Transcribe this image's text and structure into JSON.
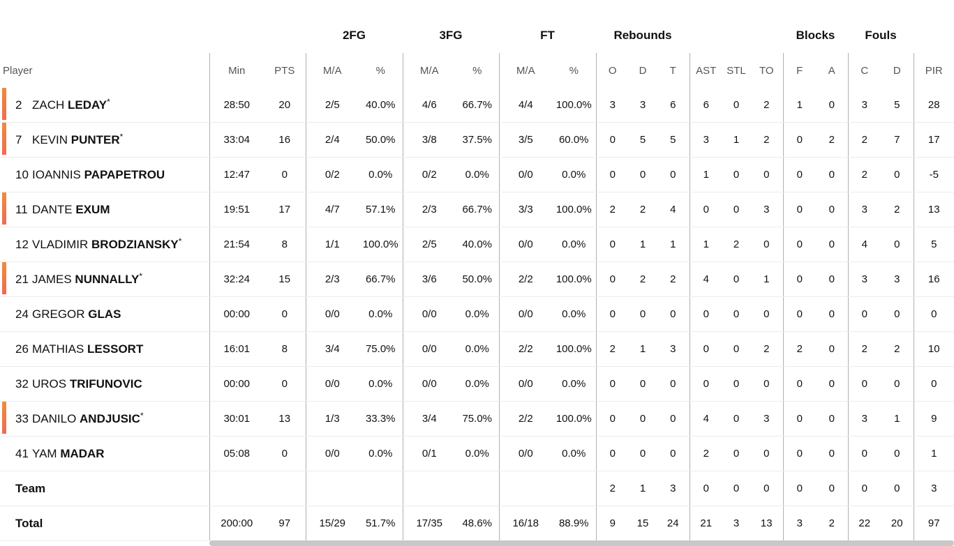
{
  "groups": {
    "fg2": "2FG",
    "fg3": "3FG",
    "ft": "FT",
    "rebounds": "Rebounds",
    "blocks": "Blocks",
    "fouls": "Fouls"
  },
  "columns": {
    "player": "Player",
    "min": "Min",
    "pts": "PTS",
    "fg2_ma": "M/A",
    "fg2_pct": "%",
    "fg3_ma": "M/A",
    "fg3_pct": "%",
    "ft_ma": "M/A",
    "ft_pct": "%",
    "reb_o": "O",
    "reb_d": "D",
    "reb_t": "T",
    "ast": "AST",
    "stl": "STL",
    "to": "TO",
    "blk_f": "F",
    "blk_a": "A",
    "foul_c": "C",
    "foul_d": "D",
    "pir": "PIR"
  },
  "starter_color": "#f36a50",
  "rows": [
    {
      "num": "2",
      "first": "ZACH",
      "last": "LEDAY",
      "star": "*",
      "starter": true,
      "min": "28:50",
      "pts": "20",
      "fg2_ma": "2/5",
      "fg2_pct": "40.0%",
      "fg3_ma": "4/6",
      "fg3_pct": "66.7%",
      "ft_ma": "4/4",
      "ft_pct": "100.0%",
      "reb_o": "3",
      "reb_d": "3",
      "reb_t": "6",
      "ast": "6",
      "stl": "0",
      "to": "2",
      "blk_f": "1",
      "blk_a": "0",
      "foul_c": "3",
      "foul_d": "5",
      "pir": "28"
    },
    {
      "num": "7",
      "first": "KEVIN",
      "last": "PUNTER",
      "star": "*",
      "starter": true,
      "min": "33:04",
      "pts": "16",
      "fg2_ma": "2/4",
      "fg2_pct": "50.0%",
      "fg3_ma": "3/8",
      "fg3_pct": "37.5%",
      "ft_ma": "3/5",
      "ft_pct": "60.0%",
      "reb_o": "0",
      "reb_d": "5",
      "reb_t": "5",
      "ast": "3",
      "stl": "1",
      "to": "2",
      "blk_f": "0",
      "blk_a": "2",
      "foul_c": "2",
      "foul_d": "7",
      "pir": "17"
    },
    {
      "num": "10",
      "first": "IOANNIS",
      "last": "PAPAPETROU",
      "star": "",
      "starter": false,
      "min": "12:47",
      "pts": "0",
      "fg2_ma": "0/2",
      "fg2_pct": "0.0%",
      "fg3_ma": "0/2",
      "fg3_pct": "0.0%",
      "ft_ma": "0/0",
      "ft_pct": "0.0%",
      "reb_o": "0",
      "reb_d": "0",
      "reb_t": "0",
      "ast": "1",
      "stl": "0",
      "to": "0",
      "blk_f": "0",
      "blk_a": "0",
      "foul_c": "2",
      "foul_d": "0",
      "pir": "-5"
    },
    {
      "num": "11",
      "first": "DANTE",
      "last": "EXUM",
      "star": "",
      "starter": true,
      "min": "19:51",
      "pts": "17",
      "fg2_ma": "4/7",
      "fg2_pct": "57.1%",
      "fg3_ma": "2/3",
      "fg3_pct": "66.7%",
      "ft_ma": "3/3",
      "ft_pct": "100.0%",
      "reb_o": "2",
      "reb_d": "2",
      "reb_t": "4",
      "ast": "0",
      "stl": "0",
      "to": "3",
      "blk_f": "0",
      "blk_a": "0",
      "foul_c": "3",
      "foul_d": "2",
      "pir": "13"
    },
    {
      "num": "12",
      "first": "VLADIMIR",
      "last": "BRODZIANSKY",
      "star": "*",
      "starter": false,
      "min": "21:54",
      "pts": "8",
      "fg2_ma": "1/1",
      "fg2_pct": "100.0%",
      "fg3_ma": "2/5",
      "fg3_pct": "40.0%",
      "ft_ma": "0/0",
      "ft_pct": "0.0%",
      "reb_o": "0",
      "reb_d": "1",
      "reb_t": "1",
      "ast": "1",
      "stl": "2",
      "to": "0",
      "blk_f": "0",
      "blk_a": "0",
      "foul_c": "4",
      "foul_d": "0",
      "pir": "5"
    },
    {
      "num": "21",
      "first": "JAMES",
      "last": "NUNNALLY",
      "star": "*",
      "starter": true,
      "min": "32:24",
      "pts": "15",
      "fg2_ma": "2/3",
      "fg2_pct": "66.7%",
      "fg3_ma": "3/6",
      "fg3_pct": "50.0%",
      "ft_ma": "2/2",
      "ft_pct": "100.0%",
      "reb_o": "0",
      "reb_d": "2",
      "reb_t": "2",
      "ast": "4",
      "stl": "0",
      "to": "1",
      "blk_f": "0",
      "blk_a": "0",
      "foul_c": "3",
      "foul_d": "3",
      "pir": "16"
    },
    {
      "num": "24",
      "first": "GREGOR",
      "last": "GLAS",
      "star": "",
      "starter": false,
      "min": "00:00",
      "pts": "0",
      "fg2_ma": "0/0",
      "fg2_pct": "0.0%",
      "fg3_ma": "0/0",
      "fg3_pct": "0.0%",
      "ft_ma": "0/0",
      "ft_pct": "0.0%",
      "reb_o": "0",
      "reb_d": "0",
      "reb_t": "0",
      "ast": "0",
      "stl": "0",
      "to": "0",
      "blk_f": "0",
      "blk_a": "0",
      "foul_c": "0",
      "foul_d": "0",
      "pir": "0"
    },
    {
      "num": "26",
      "first": "MATHIAS",
      "last": "LESSORT",
      "star": "",
      "starter": false,
      "min": "16:01",
      "pts": "8",
      "fg2_ma": "3/4",
      "fg2_pct": "75.0%",
      "fg3_ma": "0/0",
      "fg3_pct": "0.0%",
      "ft_ma": "2/2",
      "ft_pct": "100.0%",
      "reb_o": "2",
      "reb_d": "1",
      "reb_t": "3",
      "ast": "0",
      "stl": "0",
      "to": "2",
      "blk_f": "2",
      "blk_a": "0",
      "foul_c": "2",
      "foul_d": "2",
      "pir": "10"
    },
    {
      "num": "32",
      "first": "UROS",
      "last": "TRIFUNOVIC",
      "star": "",
      "starter": false,
      "min": "00:00",
      "pts": "0",
      "fg2_ma": "0/0",
      "fg2_pct": "0.0%",
      "fg3_ma": "0/0",
      "fg3_pct": "0.0%",
      "ft_ma": "0/0",
      "ft_pct": "0.0%",
      "reb_o": "0",
      "reb_d": "0",
      "reb_t": "0",
      "ast": "0",
      "stl": "0",
      "to": "0",
      "blk_f": "0",
      "blk_a": "0",
      "foul_c": "0",
      "foul_d": "0",
      "pir": "0"
    },
    {
      "num": "33",
      "first": "DANILO",
      "last": "ANDJUSIC",
      "star": "*",
      "starter": true,
      "min": "30:01",
      "pts": "13",
      "fg2_ma": "1/3",
      "fg2_pct": "33.3%",
      "fg3_ma": "3/4",
      "fg3_pct": "75.0%",
      "ft_ma": "2/2",
      "ft_pct": "100.0%",
      "reb_o": "0",
      "reb_d": "0",
      "reb_t": "0",
      "ast": "4",
      "stl": "0",
      "to": "3",
      "blk_f": "0",
      "blk_a": "0",
      "foul_c": "3",
      "foul_d": "1",
      "pir": "9"
    },
    {
      "num": "41",
      "first": "YAM",
      "last": "MADAR",
      "star": "",
      "starter": false,
      "min": "05:08",
      "pts": "0",
      "fg2_ma": "0/0",
      "fg2_pct": "0.0%",
      "fg3_ma": "0/1",
      "fg3_pct": "0.0%",
      "ft_ma": "0/0",
      "ft_pct": "0.0%",
      "reb_o": "0",
      "reb_d": "0",
      "reb_t": "0",
      "ast": "2",
      "stl": "0",
      "to": "0",
      "blk_f": "0",
      "blk_a": "0",
      "foul_c": "0",
      "foul_d": "0",
      "pir": "1"
    }
  ],
  "team_row": {
    "label": "Team",
    "min": "",
    "pts": "",
    "fg2_ma": "",
    "fg2_pct": "",
    "fg3_ma": "",
    "fg3_pct": "",
    "ft_ma": "",
    "ft_pct": "",
    "reb_o": "2",
    "reb_d": "1",
    "reb_t": "3",
    "ast": "0",
    "stl": "0",
    "to": "0",
    "blk_f": "0",
    "blk_a": "0",
    "foul_c": "0",
    "foul_d": "0",
    "pir": "3"
  },
  "total_row": {
    "label": "Total",
    "min": "200:00",
    "pts": "97",
    "fg2_ma": "15/29",
    "fg2_pct": "51.7%",
    "fg3_ma": "17/35",
    "fg3_pct": "48.6%",
    "ft_ma": "16/18",
    "ft_pct": "88.9%",
    "reb_o": "9",
    "reb_d": "15",
    "reb_t": "24",
    "ast": "21",
    "stl": "3",
    "to": "13",
    "blk_f": "3",
    "blk_a": "2",
    "foul_c": "22",
    "foul_d": "20",
    "pir": "97"
  }
}
